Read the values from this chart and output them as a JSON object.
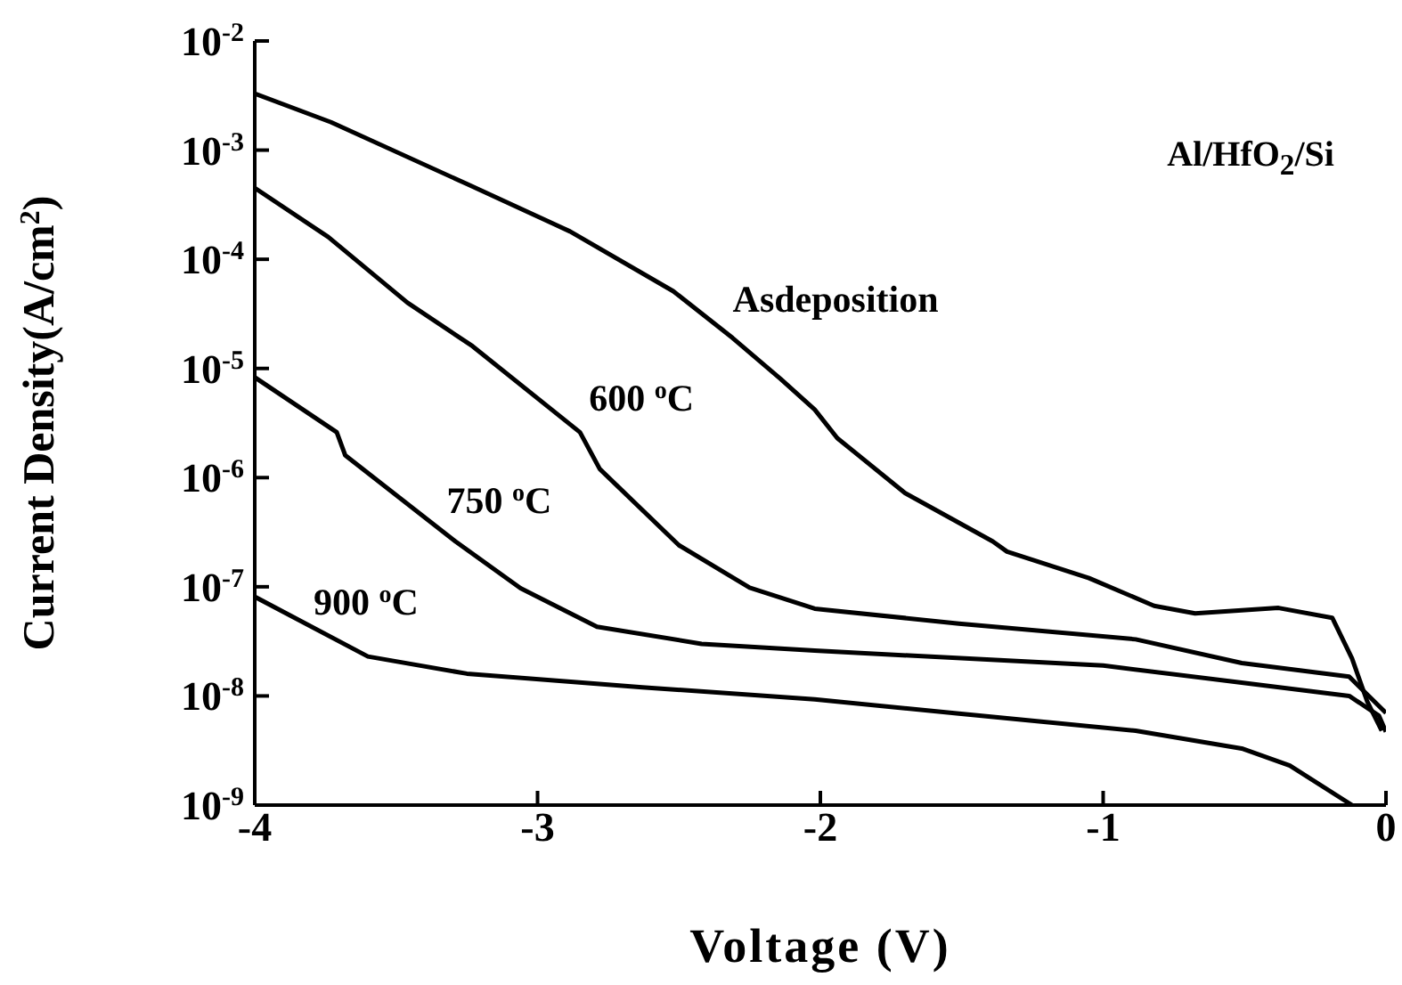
{
  "chart_data": {
    "type": "line",
    "xlabel": "Voltage (V)",
    "ylabel": "Current Density(A/cm$^{2}$)",
    "log": "y",
    "grid": false,
    "legend": false,
    "marker": "none",
    "line_style": "solid",
    "xlim": [
      -4,
      0
    ],
    "xticks": [
      -4,
      -3,
      -2,
      -1,
      0
    ],
    "ylim": [
      1e-09,
      0.01
    ],
    "yticks": [
      {
        "value": 1e-09,
        "label": "10$^{-9}$"
      },
      {
        "value": 1e-08,
        "label": "10$^{-8}$"
      },
      {
        "value": 1e-07,
        "label": "10$^{-7}$"
      },
      {
        "value": 1e-06,
        "label": "10$^{-6}$"
      },
      {
        "value": 1e-05,
        "label": "10$^{-5}$"
      },
      {
        "value": 0.0001,
        "label": "10$^{-4}$"
      },
      {
        "value": 0.001,
        "label": "10$^{-3}$"
      },
      {
        "value": 0.01,
        "label": "10$^{-2}$"
      }
    ],
    "series": [
      {
        "name": "Asdeposition",
        "color": "#000000",
        "x": [
          -4,
          -3.73,
          -3.25,
          -2.885,
          -2.52,
          -2.31,
          -2.14,
          -2.02,
          -1.94,
          -1.7,
          -1.39,
          -1.34,
          -1.05,
          -0.82,
          -0.675,
          -0.38,
          -0.19,
          -0.12,
          -0.067,
          -0.015
        ],
        "values": [
          0.0033,
          0.0018,
          0.00049,
          0.00018,
          5.1e-05,
          1.9e-05,
          8e-06,
          4.2e-06,
          2.3e-06,
          7.2e-07,
          2.6e-07,
          2.1e-07,
          1.2e-07,
          6.7e-08,
          5.7e-08,
          6.4e-08,
          5.2e-08,
          2.2e-08,
          9e-09,
          4.8e-09
        ]
      },
      {
        "name": "600 $^{o}$C",
        "color": "#000000",
        "x": [
          -4,
          -3.74,
          -3.46,
          -3.23,
          -2.85,
          -2.78,
          -2.5,
          -2.25,
          -2.02,
          -1.51,
          -0.885,
          -0.51,
          -0.13,
          0
        ],
        "values": [
          0.00045,
          0.00016,
          4e-05,
          1.6e-05,
          2.6e-06,
          1.2e-06,
          2.4e-07,
          9.8e-08,
          6.3e-08,
          4.6e-08,
          3.3e-08,
          2e-08,
          1.5e-08,
          7e-09
        ]
      },
      {
        "name": "750 $^{o}$C",
        "color": "#000000",
        "x": [
          -4,
          -3.71,
          -3.68,
          -3.29,
          -3.06,
          -2.79,
          -2.42,
          -2.02,
          -1,
          -0.13,
          -0.025,
          0
        ],
        "values": [
          8.3e-06,
          2.6e-06,
          1.6e-06,
          2.6e-07,
          9.7e-08,
          4.3e-08,
          3e-08,
          2.6e-08,
          1.9e-08,
          1e-08,
          6.6e-09,
          4.7e-09
        ]
      },
      {
        "name": "900 $^{o}$C",
        "color": "#000000",
        "x": [
          -4,
          -3.6,
          -3.25,
          -2.63,
          -2.02,
          -1.51,
          -0.885,
          -0.51,
          -0.34,
          -0.12
        ],
        "values": [
          8.1e-08,
          2.3e-08,
          1.6e-08,
          1.2e-08,
          9.3e-09,
          6.9e-09,
          4.8e-09,
          3.3e-09,
          2.3e-09,
          1e-09
        ]
      }
    ],
    "annotations": [
      "Al/HfO$_{2}$/Si"
    ]
  }
}
